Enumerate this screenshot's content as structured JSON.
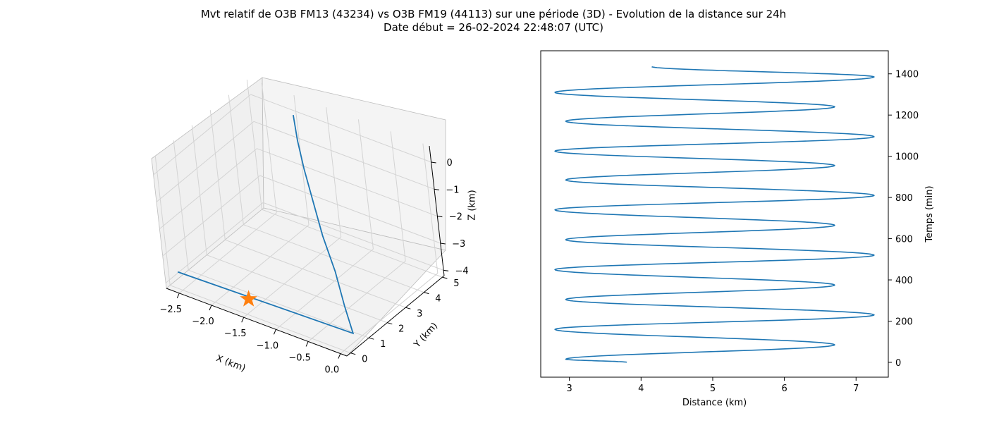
{
  "figure": {
    "title_line1": "Mvt relatif de O3B FM13 (43234) vs O3B FM19 (44113) sur une période (3D) - Evolution de la distance sur 24h",
    "title_line2": "Date début = 26-02-2024 22:48:07 (UTC)"
  },
  "colors": {
    "series": "#1f77b4",
    "marker": "#ff7f0e",
    "pane": "#f2f2f2",
    "grid": "#d3d3d3"
  },
  "chart_data": [
    {
      "type": "line3d",
      "xlabel": "X (km)",
      "ylabel": "Y (km)",
      "zlabel": "Z (km)",
      "xlim": [
        -2.7,
        0.1
      ],
      "ylim": [
        -0.2,
        5.1
      ],
      "zlim": [
        -4.2,
        0.6
      ],
      "xticks": [
        "−2.5",
        "−2.0",
        "−1.5",
        "−1.0",
        "−0.5",
        "0.0"
      ],
      "yticks": [
        "0",
        "1",
        "2",
        "3",
        "4",
        "5"
      ],
      "zticks": [
        "0",
        "−1",
        "−2",
        "−3",
        "−4"
      ],
      "trajectory": [
        {
          "x": -2.0,
          "y": 4.95,
          "z": -0.05
        },
        {
          "x": -1.8,
          "y": 4.4,
          "z": -0.5
        },
        {
          "x": -1.55,
          "y": 3.8,
          "z": -1.0
        },
        {
          "x": -1.25,
          "y": 3.15,
          "z": -1.6
        },
        {
          "x": -0.95,
          "y": 2.5,
          "z": -2.2
        },
        {
          "x": -0.6,
          "y": 1.85,
          "z": -2.85
        },
        {
          "x": -0.3,
          "y": 1.2,
          "z": -3.5
        },
        {
          "x": -0.05,
          "y": 0.7,
          "z": -4.0
        },
        {
          "x": -2.6,
          "y": 0.15,
          "z": -3.7
        }
      ],
      "marker": {
        "x": -1.55,
        "y": 0.3,
        "z": -3.85,
        "symbol": "star"
      }
    },
    {
      "type": "line",
      "xlabel": "Distance (km)",
      "ylabel": "Temps (min)",
      "xlim": [
        2.6,
        7.45
      ],
      "ylim": [
        -72,
        1512
      ],
      "xticks": [
        3,
        4,
        5,
        6,
        7
      ],
      "yticks": [
        0,
        200,
        400,
        600,
        800,
        1000,
        1200,
        1400
      ],
      "extrema": [
        {
          "t": 0,
          "d": 3.8
        },
        {
          "t": 15,
          "d": 2.95
        },
        {
          "t": 85,
          "d": 6.7
        },
        {
          "t": 160,
          "d": 2.8
        },
        {
          "t": 230,
          "d": 7.25
        },
        {
          "t": 305,
          "d": 2.95
        },
        {
          "t": 375,
          "d": 6.7
        },
        {
          "t": 450,
          "d": 2.8
        },
        {
          "t": 520,
          "d": 7.25
        },
        {
          "t": 595,
          "d": 2.95
        },
        {
          "t": 665,
          "d": 6.7
        },
        {
          "t": 740,
          "d": 2.8
        },
        {
          "t": 810,
          "d": 7.25
        },
        {
          "t": 885,
          "d": 2.95
        },
        {
          "t": 955,
          "d": 6.7
        },
        {
          "t": 1025,
          "d": 2.8
        },
        {
          "t": 1095,
          "d": 7.25
        },
        {
          "t": 1170,
          "d": 2.95
        },
        {
          "t": 1240,
          "d": 6.7
        },
        {
          "t": 1310,
          "d": 2.8
        },
        {
          "t": 1385,
          "d": 7.25
        },
        {
          "t": 1435,
          "d": 4.15
        }
      ]
    }
  ]
}
